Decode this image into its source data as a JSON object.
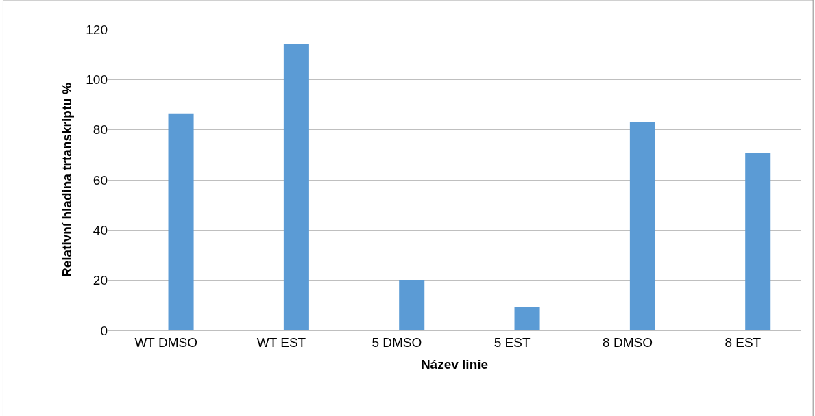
{
  "chart_data": {
    "type": "bar",
    "xlabel": "Název linie",
    "ylabel": "Relativní hladina trtanskriptu %",
    "categories": [
      "WT DMSO",
      "WT EST",
      "5 DMSO",
      "5 EST",
      "8 DMSO",
      "8 EST"
    ],
    "values": [
      86.5,
      114,
      20.2,
      9.3,
      82.9,
      70.9
    ],
    "color": "#5b9bd5",
    "ylim": [
      0,
      120
    ],
    "yticks": [
      0,
      20,
      40,
      60,
      80,
      100,
      120
    ],
    "grid": "y",
    "legend": false
  }
}
